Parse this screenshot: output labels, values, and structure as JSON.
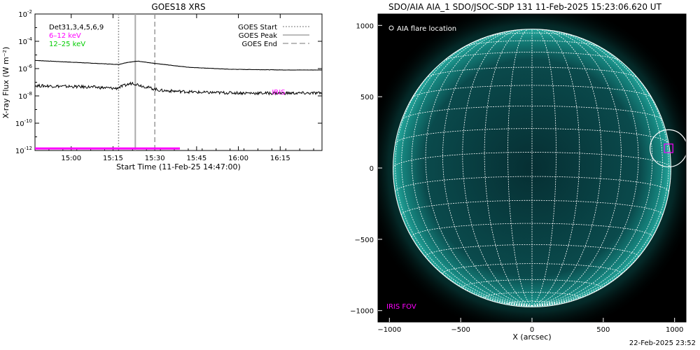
{
  "footer_timestamp": "22-Feb-2025 23:52",
  "colors": {
    "series_6_12": "#ff00ff",
    "series_12_25": "#00cc00",
    "iris": "#ff00ff",
    "sun_glow": "#0f9a92",
    "grid": "#ffffff"
  },
  "chart_data": [
    {
      "type": "line",
      "title": "GOES18 XRS",
      "xlabel": "Start Time (11-Feb-25 14:47:00)",
      "ylabel": "X-ray Flux (W m⁻²)",
      "y_scale": "log",
      "ylim_exponent": [
        -12,
        -2
      ],
      "y_ticks": [
        {
          "base": "10",
          "exp": "-2",
          "value_exp": -2
        },
        {
          "base": "10",
          "exp": "-4",
          "value_exp": -4
        },
        {
          "base": "10",
          "exp": "-6",
          "value_exp": -6
        },
        {
          "base": "10",
          "exp": "-8",
          "value_exp": -8
        },
        {
          "base": "10",
          "exp": "-10",
          "value_exp": -10
        },
        {
          "base": "10",
          "exp": "-12",
          "value_exp": -12
        }
      ],
      "x_minutes_range": [
        0,
        103
      ],
      "x_ticks": [
        {
          "label": "15:00",
          "min": 13
        },
        {
          "label": "15:15",
          "min": 28
        },
        {
          "label": "15:30",
          "min": 43
        },
        {
          "label": "15:45",
          "min": 58
        },
        {
          "label": "16:00",
          "min": 73
        },
        {
          "label": "16:15",
          "min": 88
        }
      ],
      "legend_left": [
        {
          "label": "Det31,3,4,5,6,9",
          "color": "#000000"
        },
        {
          "label": "6–12 keV",
          "color": "#ff00ff"
        },
        {
          "label": "12–25 keV",
          "color": "#00cc00"
        }
      ],
      "legend_right": [
        {
          "label": "GOES Start",
          "style": "dotted"
        },
        {
          "label": "GOES Peak",
          "style": "solid"
        },
        {
          "label": "GOES End",
          "style": "dashed"
        }
      ],
      "markers": {
        "start_min": 30,
        "peak_min": 36,
        "end_min": 43
      },
      "series": [
        {
          "name": "long",
          "exp_points": [
            [
              0,
              -5.4
            ],
            [
              20,
              -5.6
            ],
            [
              30,
              -5.7
            ],
            [
              33,
              -5.55
            ],
            [
              37,
              -5.45
            ],
            [
              42,
              -5.6
            ],
            [
              55,
              -5.9
            ],
            [
              70,
              -6.05
            ],
            [
              90,
              -6.1
            ],
            [
              103,
              -6.1
            ]
          ]
        },
        {
          "name": "short",
          "exp_points": [
            [
              0,
              -7.25
            ],
            [
              20,
              -7.35
            ],
            [
              29,
              -7.45
            ],
            [
              32,
              -7.25
            ],
            [
              35,
              -7.05
            ],
            [
              39,
              -7.3
            ],
            [
              45,
              -7.6
            ],
            [
              60,
              -7.75
            ],
            [
              80,
              -7.8
            ],
            [
              103,
              -7.8
            ]
          ]
        }
      ],
      "iris_label": "IRIS",
      "iris_label_min": 85,
      "iris_label_exp": -7.7,
      "iris_bar": {
        "start_min": 0,
        "end_min": 52,
        "exp": -11.85
      }
    },
    {
      "type": "image",
      "title": "SDO/AIA AIA_1 SDO/JSOC-SDP 131 11-Feb-2025 15:23:06.620 UT",
      "xlabel": "X (arcsec)",
      "xlim": [
        -1080,
        1080
      ],
      "ylim": [
        -1080,
        1080
      ],
      "x_ticks": [
        -1000,
        -500,
        0,
        500,
        1000
      ],
      "y_ticks": [
        1000,
        500,
        0,
        -500,
        -1000
      ],
      "x_tick_labels": [
        "−1000",
        "−500",
        "0",
        "500",
        "1000"
      ],
      "y_tick_labels": [
        "1000",
        "500",
        "0",
        "−500",
        "−1000"
      ],
      "solar_radius_arcsec": 974,
      "legend_text": "AIA flare location",
      "flare_location": {
        "x": 958,
        "y": 138
      },
      "iris_fov_label": "IRIS FOV",
      "iris_fov": {
        "x": 958,
        "y": 138,
        "w": 60,
        "h": 60
      }
    }
  ]
}
